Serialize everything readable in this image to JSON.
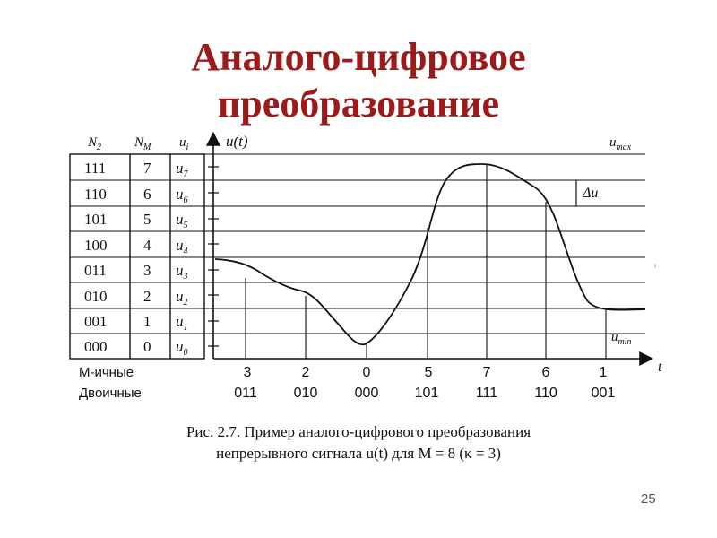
{
  "title": {
    "line1": "Аналого-цифровое",
    "line2": "преобразование"
  },
  "table": {
    "headers": {
      "binary": "N",
      "binary_sub": "2",
      "mary": "N",
      "mary_sub": "M",
      "level": "u",
      "level_sub": "i"
    },
    "rows": [
      {
        "binary": "111",
        "mary": "7",
        "level": "u",
        "level_sub": "7"
      },
      {
        "binary": "110",
        "mary": "6",
        "level": "u",
        "level_sub": "6"
      },
      {
        "binary": "101",
        "mary": "5",
        "level": "u",
        "level_sub": "5"
      },
      {
        "binary": "100",
        "mary": "4",
        "level": "u",
        "level_sub": "4"
      },
      {
        "binary": "011",
        "mary": "3",
        "level": "u",
        "level_sub": "3"
      },
      {
        "binary": "010",
        "mary": "2",
        "level": "u",
        "level_sub": "2"
      },
      {
        "binary": "001",
        "mary": "1",
        "level": "u",
        "level_sub": "1"
      },
      {
        "binary": "000",
        "mary": "0",
        "level": "u",
        "level_sub": "0"
      }
    ]
  },
  "plot": {
    "y_axis_label": "u(t)",
    "x_axis_label": "t",
    "umax_label": "u",
    "umax_sub": "max",
    "umin_label": "u",
    "umin_sub": "min",
    "delta_label": "Δu",
    "row_label_mary": "M-ичные",
    "row_label_binary": "Двоичные",
    "samples": [
      {
        "mary": "3",
        "binary": "011"
      },
      {
        "mary": "2",
        "binary": "010"
      },
      {
        "mary": "0",
        "binary": "000"
      },
      {
        "mary": "5",
        "binary": "101"
      },
      {
        "mary": "7",
        "binary": "111"
      },
      {
        "mary": "6",
        "binary": "110"
      },
      {
        "mary": "1",
        "binary": "001"
      }
    ]
  },
  "caption": {
    "line1": "Рис. 2.7. Пример аналого-цифрового преобразования",
    "line2": "непрерывного сигнала u(t) для M = 8 (κ = 3)"
  },
  "page_number": "25",
  "colors": {
    "title": "#9b1b1b",
    "lines": "#111111"
  }
}
